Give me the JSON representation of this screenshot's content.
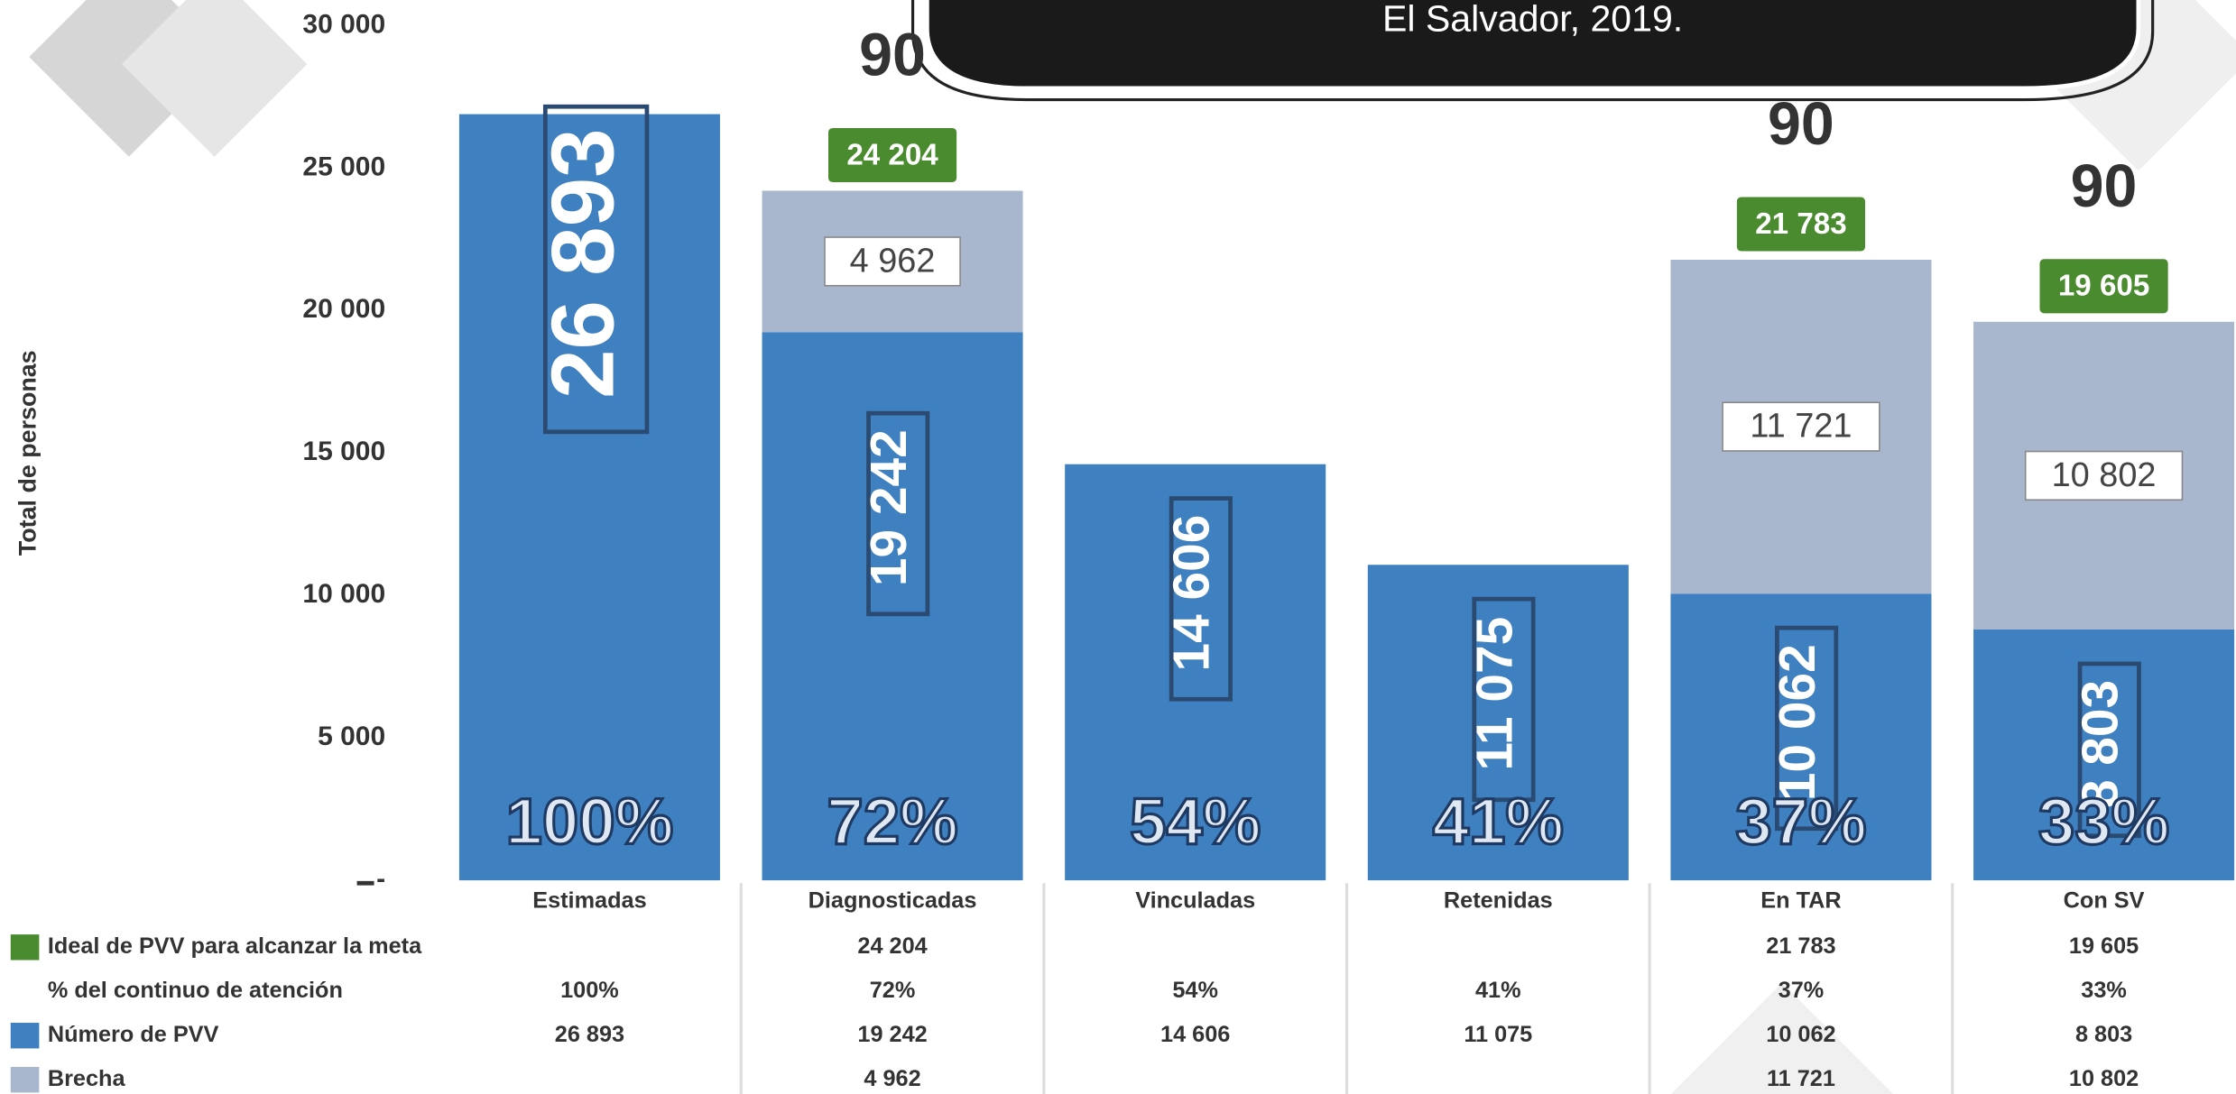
{
  "chart_data": {
    "type": "bar",
    "title": "El Salvador, 2019.",
    "ylabel": "Total de personas",
    "categories": [
      "Estimadas",
      "Diagnosticadas",
      "Vinculadas",
      "Retenidas",
      "En TAR",
      "Con SV"
    ],
    "series": [
      {
        "name": "Número de PVV",
        "color": "#3f80c0",
        "values": [
          26893,
          19242,
          14606,
          11075,
          10062,
          8803
        ],
        "value_labels": [
          "26 893",
          "19 242",
          "14 606",
          "11 075",
          "10 062",
          "8 803"
        ]
      },
      {
        "name": "Brecha",
        "color": "#a8b7cd",
        "values": [
          null,
          4962,
          null,
          null,
          11721,
          10802
        ],
        "value_labels": [
          null,
          "4 962",
          null,
          null,
          "11 721",
          "10 802"
        ]
      },
      {
        "name": "Ideal de PVV para alcanzar la meta",
        "color": "#4b8b2f",
        "values": [
          null,
          24204,
          null,
          null,
          21783,
          19605
        ],
        "value_labels": [
          null,
          "24 204",
          null,
          null,
          "21 783",
          "19 605"
        ]
      }
    ],
    "percent": {
      "name": "% del continuo de atención",
      "values": [
        100,
        72,
        54,
        41,
        37,
        33
      ],
      "value_labels": [
        "100%",
        "72%",
        "54%",
        "41%",
        "37%",
        "33%"
      ]
    },
    "target_labels": [
      null,
      "90",
      null,
      null,
      "90",
      "90"
    ],
    "ylim": [
      0,
      30000
    ],
    "yticks": [
      {
        "value": 0,
        "label": "-"
      },
      {
        "value": 5000,
        "label": "5 000"
      },
      {
        "value": 10000,
        "label": "10 000"
      },
      {
        "value": 15000,
        "label": "15 000"
      },
      {
        "value": 20000,
        "label": "20 000"
      },
      {
        "value": 25000,
        "label": "25 000"
      },
      {
        "value": 30000,
        "label": "30 000"
      }
    ],
    "grid": false
  }
}
